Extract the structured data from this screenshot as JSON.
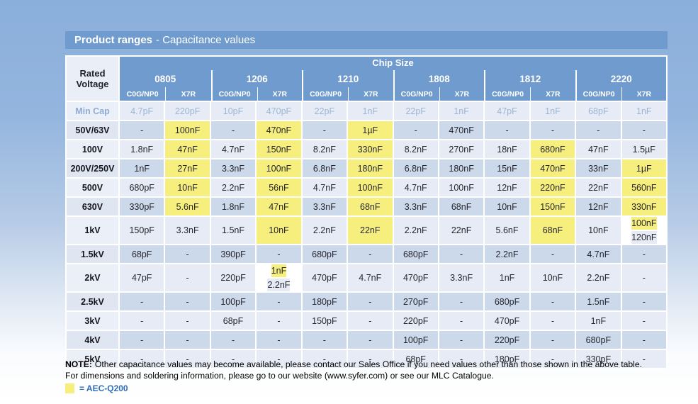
{
  "page": {
    "title_bold": "Product ranges",
    "title_rest": "- Capacitance values",
    "colors": {
      "header_blue": "#6f9bce",
      "row_light": "#e6ebf5",
      "row_dark": "#ccd9ea",
      "highlight_yellow": "#f7ef7d",
      "mincap_text": "#9db6d6",
      "legend_text": "#2f6db8"
    }
  },
  "table": {
    "corner_header_line1": "Rated",
    "corner_header_line2": "Voltage",
    "chip_size_label": "Chip Size",
    "chip_sizes": [
      "0805",
      "1206",
      "1210",
      "1808",
      "1812",
      "2220"
    ],
    "dielectrics": [
      "C0G/NP0",
      "X7R"
    ],
    "min_cap_label": "Min Cap",
    "min_cap_values": [
      "4.7pF",
      "220pF",
      "10pF",
      "470pF",
      "22pF",
      "1nF",
      "22pF",
      "1nF",
      "47pF",
      "1nF",
      "68pF",
      "1nF"
    ],
    "rows": [
      {
        "label": "50V/63V",
        "cells": [
          "-",
          {
            "t": "100nF",
            "hl": true
          },
          "-",
          {
            "t": "470nF",
            "hl": true
          },
          "-",
          {
            "t": "1µF",
            "hl": true
          },
          "-",
          "470nF",
          "-",
          "-",
          "-",
          "-"
        ]
      },
      {
        "label": "100V",
        "cells": [
          "1.8nF",
          {
            "t": "47nF",
            "hl": true
          },
          "4.7nF",
          {
            "t": "150nF",
            "hl": true
          },
          "8.2nF",
          {
            "t": "330nF",
            "hl": true
          },
          "8.2nF",
          "270nF",
          "18nF",
          {
            "t": "680nF",
            "hl": true
          },
          "47nF",
          "1.5µF"
        ]
      },
      {
        "label": "200V/250V",
        "cells": [
          "1nF",
          {
            "t": "27nF",
            "hl": true
          },
          "3.3nF",
          {
            "t": "100nF",
            "hl": true
          },
          "6.8nF",
          {
            "t": "180nF",
            "hl": true
          },
          "6.8nF",
          "180nF",
          "15nF",
          {
            "t": "470nF",
            "hl": true
          },
          "33nF",
          {
            "t": "1µF",
            "hl": true
          }
        ]
      },
      {
        "label": "500V",
        "cells": [
          "680pF",
          {
            "t": "10nF",
            "hl": true
          },
          "2.2nF",
          {
            "t": "56nF",
            "hl": true
          },
          "4.7nF",
          {
            "t": "100nF",
            "hl": true
          },
          "4.7nF",
          "100nF",
          "12nF",
          {
            "t": "220nF",
            "hl": true
          },
          "22nF",
          {
            "t": "560nF",
            "hl": true
          }
        ]
      },
      {
        "label": "630V",
        "cells": [
          "330pF",
          {
            "t": "5.6nF",
            "hl": true
          },
          "1.8nF",
          {
            "t": "47nF",
            "hl": true
          },
          "3.3nF",
          {
            "t": "68nF",
            "hl": true
          },
          "3.3nF",
          "68nF",
          "10nF",
          {
            "t": "150nF",
            "hl": true
          },
          "12nF",
          {
            "t": "330nF",
            "hl": true
          }
        ]
      },
      {
        "label": "1kV",
        "cells": [
          "150pF",
          "3.3nF",
          "1.5nF",
          {
            "t": "10nF",
            "hl": true
          },
          "2.2nF",
          {
            "t": "22nF",
            "hl": true
          },
          "2.2nF",
          "22nF",
          "5.6nF",
          {
            "t": "68nF",
            "hl": true
          },
          "10nF",
          {
            "split": [
              {
                "t": "100nF",
                "hl": true
              },
              {
                "t": "120nF",
                "hl": false
              }
            ]
          }
        ]
      },
      {
        "label": "1.5kV",
        "cells": [
          "68pF",
          "-",
          "390pF",
          "-",
          "680pF",
          "-",
          "680pF",
          "-",
          "2.2nF",
          "-",
          "4.7nF",
          "-"
        ]
      },
      {
        "label": "2kV",
        "cells": [
          "47pF",
          "-",
          "220pF",
          {
            "split": [
              {
                "t": "1nF",
                "hl": true
              },
              {
                "t": "2.2nF",
                "hl": false
              }
            ]
          },
          "470pF",
          "4.7nF",
          "470pF",
          "3.3nF",
          "1nF",
          "10nF",
          "2.2nF",
          "-"
        ]
      },
      {
        "label": "2.5kV",
        "cells": [
          "-",
          "-",
          "100pF",
          "-",
          "180pF",
          "-",
          "270pF",
          "-",
          "680pF",
          "-",
          "1.5nF",
          "-"
        ]
      },
      {
        "label": "3kV",
        "cells": [
          "-",
          "-",
          "68pF",
          "-",
          "150pF",
          "-",
          "220pF",
          "-",
          "470pF",
          "-",
          "1nF",
          "-"
        ]
      },
      {
        "label": "4kV",
        "cells": [
          "-",
          "-",
          "-",
          "-",
          "-",
          "-",
          "100pF",
          "-",
          "220pF",
          "-",
          "680pF",
          "-"
        ]
      },
      {
        "label": "5kV",
        "cells": [
          "-",
          "-",
          "-",
          "-",
          "-",
          "-",
          "68pF",
          "-",
          "180pF",
          "-",
          "330pF",
          "-"
        ]
      }
    ]
  },
  "notes": {
    "note_label": "NOTE:",
    "note_line1": "Other capacitance values may become available, please contact our Sales Office if you need values other than those shown in the above table.",
    "note_line2": "For dimensions and soldering information, please go to our website (www.syfer.com) or see our MLC Catalogue.",
    "legend_label": "= AEC-Q200"
  }
}
